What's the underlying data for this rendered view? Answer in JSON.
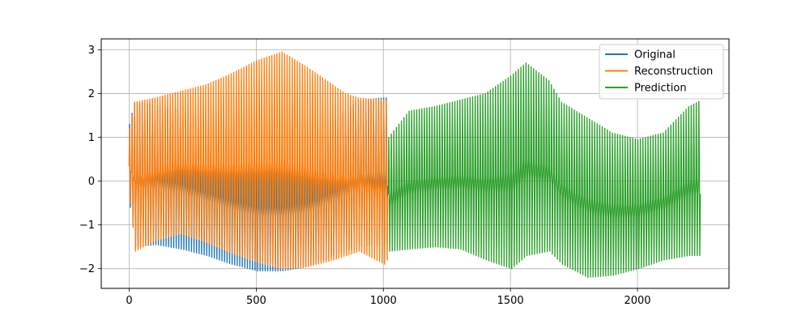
{
  "chart_data": {
    "type": "line",
    "title": "",
    "xlabel": "",
    "ylabel": "",
    "xlim": [
      -110,
      2360
    ],
    "ylim": [
      -2.45,
      3.25
    ],
    "grid": true,
    "legend_position": "top-right",
    "xticks": [
      0,
      500,
      1000,
      1500,
      2000
    ],
    "yticks": [
      -2,
      -1,
      0,
      1,
      2,
      3
    ],
    "xtick_labels": [
      "0",
      "500",
      "1000",
      "1500",
      "2000"
    ],
    "ytick_labels": [
      "−2",
      "−1",
      "0",
      "1",
      "2",
      "3"
    ],
    "series": [
      {
        "name": "Original",
        "color": "#1f77b4",
        "x_start": 0,
        "x_end": 1020,
        "period": 10,
        "envelope_x": [
          0,
          20,
          100,
          200,
          300,
          400,
          500,
          600,
          700,
          800,
          850,
          900,
          1000,
          1020
        ],
        "envelope_min": [
          -0.6,
          -1.5,
          -1.45,
          -1.55,
          -1.7,
          -1.9,
          -2.05,
          -2.05,
          -1.95,
          -1.7,
          -1.6,
          -1.5,
          -1.45,
          -1.45
        ],
        "envelope_max": [
          1.3,
          1.8,
          1.75,
          1.6,
          1.4,
          1.2,
          1.05,
          1.05,
          1.15,
          1.4,
          1.6,
          1.85,
          1.9,
          1.9
        ]
      },
      {
        "name": "Reconstruction",
        "color": "#ff7f0e",
        "x_start": 0,
        "x_end": 1020,
        "period": 10,
        "envelope_x": [
          0,
          20,
          100,
          200,
          300,
          400,
          500,
          600,
          700,
          800,
          850,
          900,
          1000,
          1020
        ],
        "envelope_min": [
          -0.5,
          -1.6,
          -1.35,
          -1.2,
          -1.4,
          -1.65,
          -1.85,
          -2.0,
          -1.95,
          -1.8,
          -1.7,
          -1.6,
          -1.9,
          -1.7
        ],
        "envelope_max": [
          1.2,
          1.8,
          1.9,
          2.05,
          2.2,
          2.45,
          2.75,
          2.95,
          2.6,
          2.2,
          2.0,
          1.9,
          1.85,
          1.8
        ]
      },
      {
        "name": "Prediction",
        "color": "#2ca02c",
        "x_start": 1020,
        "x_end": 2250,
        "period": 10,
        "envelope_x": [
          1020,
          1100,
          1200,
          1300,
          1400,
          1500,
          1560,
          1650,
          1700,
          1800,
          1900,
          2000,
          2100,
          2200,
          2250
        ],
        "envelope_min": [
          -1.6,
          -1.55,
          -1.5,
          -1.55,
          -1.8,
          -2.0,
          -1.7,
          -1.6,
          -1.9,
          -2.2,
          -2.15,
          -2.0,
          -1.8,
          -1.7,
          -1.7
        ],
        "envelope_max": [
          1.0,
          1.6,
          1.7,
          1.85,
          2.0,
          2.4,
          2.7,
          2.3,
          1.8,
          1.45,
          1.1,
          0.95,
          1.1,
          1.7,
          1.85
        ]
      }
    ]
  }
}
